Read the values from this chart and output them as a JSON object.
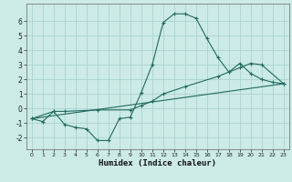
{
  "xlabel": "Humidex (Indice chaleur)",
  "bg_color": "#cceae6",
  "line_color": "#1f6b5e",
  "grid_color": "#aad4ce",
  "xlim": [
    -0.5,
    23.5
  ],
  "ylim": [
    -2.8,
    7.2
  ],
  "xticks": [
    0,
    1,
    2,
    3,
    4,
    5,
    6,
    7,
    8,
    9,
    10,
    11,
    12,
    13,
    14,
    15,
    16,
    17,
    18,
    19,
    20,
    21,
    22,
    23
  ],
  "yticks": [
    -2,
    -1,
    0,
    1,
    2,
    3,
    4,
    5,
    6
  ],
  "line1_x": [
    0,
    1,
    2,
    3,
    4,
    5,
    6,
    7,
    8,
    9,
    10,
    11,
    12,
    13,
    14,
    15,
    16,
    17,
    18,
    19,
    20,
    21,
    22,
    23
  ],
  "line1_y": [
    -0.7,
    -0.9,
    -0.2,
    -1.1,
    -1.3,
    -1.4,
    -2.2,
    -2.2,
    -0.7,
    -0.6,
    1.1,
    3.0,
    5.9,
    6.5,
    6.5,
    6.2,
    4.8,
    3.5,
    2.5,
    3.1,
    2.4,
    2.0,
    1.8,
    1.7
  ],
  "line2_x": [
    0,
    2,
    3,
    6,
    9,
    10,
    11,
    12,
    14,
    17,
    19,
    20,
    21,
    23
  ],
  "line2_y": [
    -0.7,
    -0.2,
    -0.2,
    -0.1,
    -0.1,
    0.2,
    0.5,
    1.0,
    1.5,
    2.2,
    2.8,
    3.1,
    3.0,
    1.7
  ],
  "line3_x": [
    0,
    23
  ],
  "line3_y": [
    -0.7,
    1.7
  ]
}
